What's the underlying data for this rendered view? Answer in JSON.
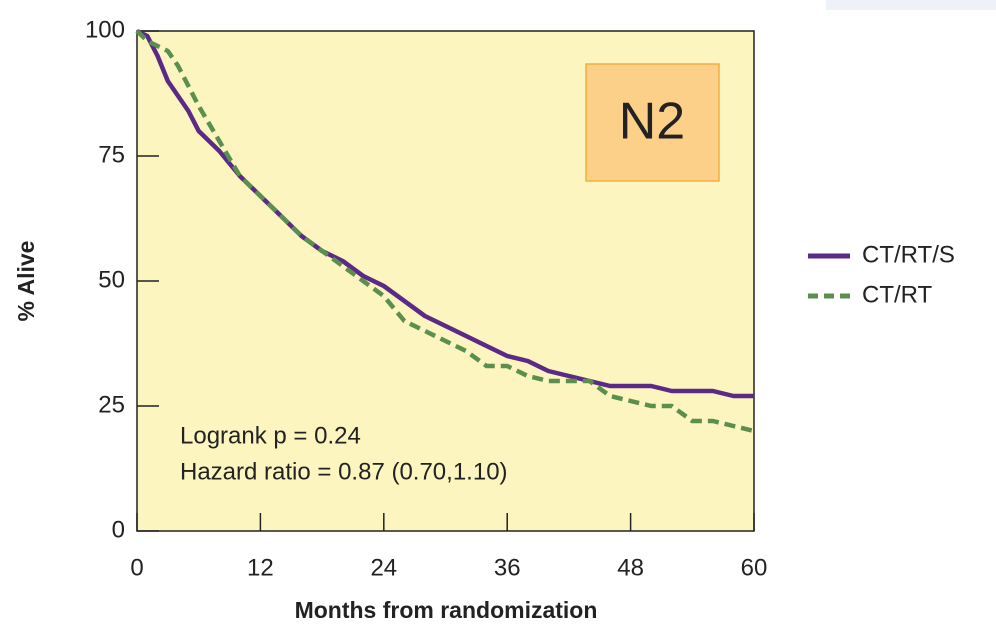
{
  "chart_data": {
    "type": "line",
    "xlabel": "Months from randomization",
    "ylabel": "% Alive",
    "annotations": [
      "Logrank p = 0.24",
      "Hazard ratio = 0.87 (0.70,1.10)"
    ],
    "label": "N2",
    "x": [
      0,
      1,
      2,
      3,
      4,
      5,
      6,
      8,
      10,
      12,
      14,
      16,
      18,
      20,
      22,
      24,
      26,
      28,
      30,
      32,
      34,
      36,
      38,
      40,
      42,
      44,
      46,
      48,
      50,
      52,
      54,
      56,
      58,
      60
    ],
    "series": [
      {
        "name": "CT/RT/S",
        "color": "#5b2a86",
        "dash": false,
        "values": [
          100,
          99,
          95,
          90,
          87,
          84,
          80,
          76,
          71,
          67,
          63,
          59,
          56,
          54,
          51,
          49,
          46,
          43,
          41,
          39,
          37,
          35,
          34,
          32,
          31,
          30,
          29,
          29,
          29,
          28,
          28,
          28,
          27,
          27
        ]
      },
      {
        "name": "CT/RT",
        "color": "#5a8f4e",
        "dash": true,
        "values": [
          100,
          98,
          97,
          96,
          93,
          89,
          85,
          78,
          71,
          67,
          63,
          59,
          56,
          53,
          50,
          47,
          42,
          40,
          38,
          36,
          33,
          33,
          31,
          30,
          30,
          30,
          27,
          26,
          25,
          25,
          22,
          22,
          21,
          20
        ]
      }
    ],
    "xlim": [
      0,
      60
    ],
    "xticks": [
      0,
      12,
      24,
      36,
      48,
      60
    ],
    "ylim": [
      0,
      100
    ],
    "yticks": [
      0,
      25,
      50,
      75,
      100
    ],
    "background": "#fcf5c0"
  }
}
